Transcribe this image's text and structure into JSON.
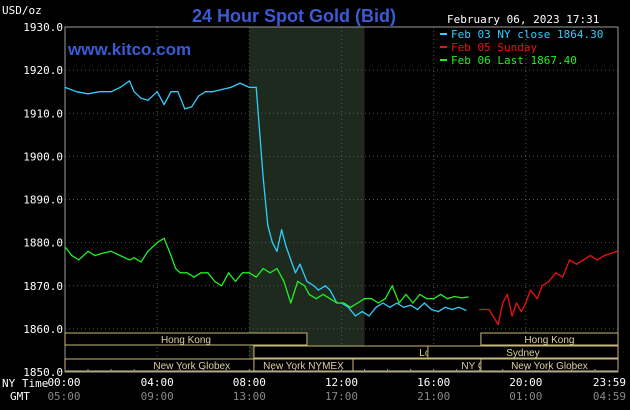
{
  "chart_data": {
    "type": "line",
    "title": "24 Hour Spot Gold (Bid)",
    "ylabel": "USD/oz",
    "watermark": "www.kitco.com",
    "timestamp": "February 06, 2023 17:31",
    "ylim": [
      1850,
      1930
    ],
    "y_ticks": [
      "1930.0",
      "1920.0",
      "1910.0",
      "1900.0",
      "1890.0",
      "1880.0",
      "1870.0",
      "1860.0",
      "1850.0"
    ],
    "y_tick_values": [
      1930,
      1920,
      1910,
      1900,
      1890,
      1880,
      1870,
      1860,
      1850
    ],
    "xlim": [
      0,
      24
    ],
    "ny_time_label": "NY Time",
    "gmt_label": "GMT",
    "x_ticks_ny": [
      "00:00",
      "04:00",
      "08:00",
      "12:00",
      "16:00",
      "20:00",
      "23:59"
    ],
    "x_ticks_gmt": [
      "05:00",
      "09:00",
      "13:00",
      "17:00",
      "21:00",
      "01:00",
      "04:59"
    ],
    "x_tick_hours": [
      0,
      4,
      8,
      12,
      16,
      20,
      23.98
    ],
    "shaded_hours": [
      8.0,
      13.0
    ],
    "grid": true,
    "legend_position": "top-right",
    "legend": [
      {
        "label": "Feb 03 NY close 1864.30",
        "color": "#33ccff"
      },
      {
        "label": "Feb 05 Sunday",
        "color": "#ee1111"
      },
      {
        "label": "Feb 06 Last 1867.40",
        "color": "#22ee22"
      }
    ],
    "sessions": [
      {
        "row": 1,
        "label": "Hong Kong",
        "start": 0,
        "end": 10.5
      },
      {
        "row": 1,
        "label": "Hong Kong",
        "start": 18.05,
        "end": 24
      },
      {
        "row": 2,
        "label": "London",
        "start": 8.2,
        "end": 25.5
      },
      {
        "row": 2,
        "label": "Sydney",
        "start": 15.75,
        "end": 24
      },
      {
        "row": 3,
        "label": "New York Globex",
        "start": 0,
        "end": 11
      },
      {
        "row": 3,
        "label": "New York NYMEX",
        "start": 8.2,
        "end": 12.5
      },
      {
        "row": 3,
        "label": "NY Globex",
        "start": 12.5,
        "end": 24
      },
      {
        "row": 3,
        "label": "New York Globex",
        "start": 18.05,
        "end": 24
      }
    ],
    "series": [
      {
        "name": "Feb 03 NY close 1864.30",
        "color": "#33ccff",
        "x": [
          0,
          0.5,
          1.0,
          1.5,
          2.0,
          2.4,
          2.8,
          3.0,
          3.3,
          3.6,
          4.0,
          4.3,
          4.6,
          4.9,
          5.2,
          5.5,
          5.8,
          6.1,
          6.4,
          6.8,
          7.2,
          7.6,
          8.0,
          8.3,
          8.6,
          8.8,
          9.0,
          9.2,
          9.4,
          9.6,
          9.8,
          10.0,
          10.2,
          10.5,
          10.8,
          11.0,
          11.3,
          11.5,
          11.8,
          12.0,
          12.3,
          12.6,
          12.9,
          13.2,
          13.5,
          13.8,
          14.1,
          14.4,
          14.7,
          15.0,
          15.3,
          15.6,
          15.9,
          16.2,
          16.5,
          16.8,
          17.1,
          17.4
        ],
        "y": [
          1916,
          1915,
          1914.5,
          1915,
          1915,
          1916,
          1917.5,
          1915,
          1913.5,
          1913,
          1915,
          1912,
          1915,
          1915,
          1911,
          1911.5,
          1914,
          1915,
          1915,
          1915.5,
          1916,
          1917,
          1916,
          1916,
          1895,
          1884,
          1880,
          1878,
          1883,
          1879,
          1876,
          1873,
          1875,
          1871,
          1870,
          1869,
          1870,
          1869,
          1866,
          1866,
          1865,
          1863,
          1864,
          1863,
          1865,
          1866,
          1865,
          1866,
          1865,
          1865.5,
          1864.5,
          1866,
          1864.5,
          1864,
          1865,
          1864.5,
          1865,
          1864.3
        ]
      },
      {
        "name": "Feb 05 Sunday",
        "color": "#ee1111",
        "x": [
          18.0,
          18.4,
          18.8,
          19.0,
          19.2,
          19.4,
          19.6,
          19.8,
          20.0,
          20.2,
          20.5,
          20.7,
          21.0,
          21.3,
          21.6,
          21.9,
          22.2,
          22.5,
          22.8,
          23.1,
          23.4,
          23.7,
          23.98
        ],
        "y": [
          1864.5,
          1864.5,
          1861,
          1866,
          1868,
          1863,
          1866,
          1864,
          1866,
          1869,
          1867,
          1870,
          1871,
          1873,
          1872,
          1876,
          1875,
          1876,
          1877,
          1876,
          1877,
          1877.5,
          1878
        ]
      },
      {
        "name": "Feb 06 Last 1867.40",
        "color": "#22ee22",
        "x": [
          0,
          0.3,
          0.6,
          1.0,
          1.3,
          1.6,
          2.0,
          2.4,
          2.8,
          3.0,
          3.3,
          3.6,
          4.0,
          4.3,
          4.6,
          4.8,
          5.0,
          5.3,
          5.6,
          5.9,
          6.2,
          6.5,
          6.8,
          7.1,
          7.4,
          7.7,
          8.0,
          8.3,
          8.6,
          8.9,
          9.2,
          9.5,
          9.8,
          10.1,
          10.4,
          10.6,
          10.9,
          11.2,
          11.5,
          11.8,
          12.1,
          12.4,
          12.7,
          13.0,
          13.3,
          13.6,
          13.9,
          14.2,
          14.5,
          14.8,
          15.1,
          15.4,
          15.7,
          16.0,
          16.3,
          16.6,
          16.9,
          17.2,
          17.5
        ],
        "y": [
          1879,
          1877,
          1876,
          1878,
          1877,
          1877.5,
          1878,
          1877,
          1876,
          1876.5,
          1875.5,
          1878,
          1880,
          1881,
          1877,
          1874,
          1873,
          1873,
          1872,
          1873,
          1873,
          1871,
          1870,
          1873,
          1871,
          1873,
          1873,
          1872,
          1874,
          1873,
          1874,
          1871,
          1866,
          1871,
          1870,
          1868,
          1867,
          1868,
          1867,
          1866,
          1866,
          1865,
          1866,
          1867,
          1867,
          1866,
          1867,
          1870,
          1866,
          1868,
          1866,
          1868,
          1867,
          1867,
          1868,
          1867,
          1867.5,
          1867.2,
          1867.4
        ]
      }
    ]
  }
}
